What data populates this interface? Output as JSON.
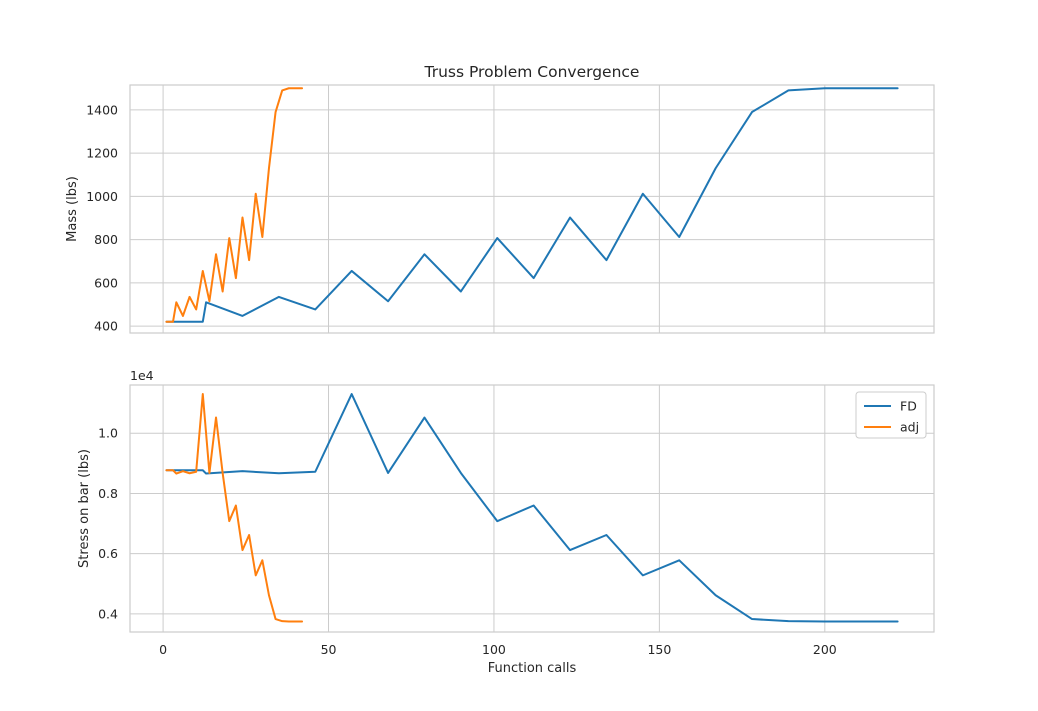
{
  "chart_data": [
    {
      "type": "line",
      "title": "Truss Problem Convergence",
      "xlabel": "",
      "ylabel": "Mass (lbs)",
      "xlim": [
        -10,
        233
      ],
      "ylim": [
        368,
        1515
      ],
      "xticks": [
        0,
        50,
        100,
        150,
        200
      ],
      "yticks": [
        400,
        600,
        800,
        1000,
        1200,
        1400
      ],
      "ytick_labels": [
        "400",
        "600",
        "800",
        "1000",
        "1200",
        "1400"
      ],
      "show_xtick_labels": false,
      "grid": true,
      "series": [
        {
          "name": "FD",
          "color": "#1f77b4",
          "x": [
            1,
            12,
            13,
            24,
            35,
            46,
            57,
            68,
            79,
            90,
            101,
            112,
            123,
            134,
            145,
            156,
            167,
            178,
            189,
            200,
            211,
            222
          ],
          "y": [
            420,
            420,
            510,
            447,
            535,
            477,
            655,
            515,
            732,
            560,
            807,
            622,
            902,
            705,
            1012,
            812,
            1130,
            1390,
            1490,
            1500,
            1500,
            1500
          ]
        },
        {
          "name": "adj",
          "color": "#ff7f0e",
          "x": [
            1,
            3,
            4,
            6,
            8,
            10,
            12,
            14,
            16,
            18,
            20,
            22,
            24,
            26,
            28,
            30,
            32,
            34,
            36,
            38,
            40,
            42
          ],
          "y": [
            420,
            420,
            510,
            447,
            535,
            477,
            655,
            515,
            732,
            560,
            807,
            622,
            902,
            705,
            1012,
            812,
            1130,
            1390,
            1490,
            1500,
            1500,
            1500
          ]
        }
      ]
    },
    {
      "type": "line",
      "title": "",
      "xlabel": "Function calls",
      "ylabel": "Stress on bar (lbs)",
      "axis_offset_label": "1e4",
      "xlim": [
        -10,
        233
      ],
      "ylim": [
        0.34,
        1.16
      ],
      "xticks": [
        0,
        50,
        100,
        150,
        200
      ],
      "xtick_labels": [
        "0",
        "50",
        "100",
        "150",
        "200"
      ],
      "yticks": [
        0.4,
        0.6,
        0.8,
        1.0
      ],
      "ytick_labels": [
        "0.4",
        "0.6",
        "0.8",
        "1.0"
      ],
      "grid": true,
      "legend": {
        "placement": "upper right",
        "entries": [
          "FD",
          "adj"
        ]
      },
      "series": [
        {
          "name": "FD",
          "color": "#1f77b4",
          "x": [
            1,
            12,
            13,
            24,
            35,
            46,
            57,
            68,
            79,
            90,
            101,
            112,
            123,
            134,
            145,
            156,
            167,
            178,
            189,
            200,
            211,
            222
          ],
          "y": [
            0.877,
            0.877,
            0.866,
            0.874,
            0.867,
            0.872,
            1.13,
            0.868,
            1.052,
            0.868,
            0.708,
            0.76,
            0.612,
            0.662,
            0.528,
            0.578,
            0.462,
            0.383,
            0.376,
            0.375,
            0.375,
            0.375
          ]
        },
        {
          "name": "adj",
          "color": "#ff7f0e",
          "x": [
            1,
            3,
            4,
            6,
            8,
            10,
            12,
            14,
            16,
            18,
            20,
            22,
            24,
            26,
            28,
            30,
            32,
            34,
            36,
            38,
            40,
            42
          ],
          "y": [
            0.877,
            0.877,
            0.866,
            0.874,
            0.867,
            0.872,
            1.13,
            0.868,
            1.052,
            0.868,
            0.708,
            0.76,
            0.612,
            0.662,
            0.528,
            0.578,
            0.462,
            0.383,
            0.376,
            0.375,
            0.375,
            0.375
          ]
        }
      ]
    }
  ]
}
